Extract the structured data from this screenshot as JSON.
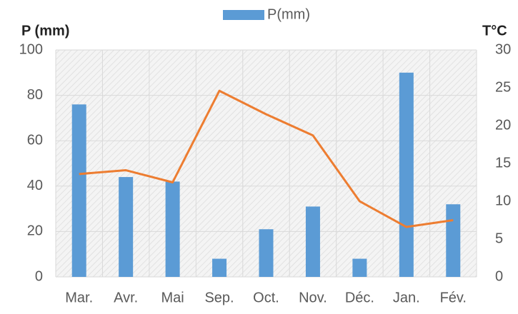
{
  "chart_data": {
    "type": "bar",
    "y_label": "P (mm)",
    "y2_label": "T°C",
    "categories": [
      "Mar.",
      "Avr.",
      "Mai",
      "Sep.",
      "Oct.",
      "Nov.",
      "Déc.",
      "Jan.",
      "Fév."
    ],
    "series": [
      {
        "name": "P(mm)",
        "type": "bar",
        "color": "#5b9bd5",
        "values": [
          76,
          44,
          42,
          8,
          21,
          31,
          8,
          90,
          32
        ]
      },
      {
        "type": "line",
        "axis": "y2",
        "color": "#ed7d31",
        "values": [
          13.6,
          14.1,
          12.5,
          24.6,
          21.5,
          18.7,
          10,
          6.6,
          7.5
        ]
      }
    ],
    "ylim": [
      0,
      100
    ],
    "yticks": [
      0,
      20,
      40,
      60,
      80,
      100
    ],
    "y2lim": [
      0,
      30
    ],
    "y2ticks": [
      0,
      5,
      10,
      15,
      20,
      25,
      30
    ],
    "grid": true,
    "legend": "top"
  }
}
